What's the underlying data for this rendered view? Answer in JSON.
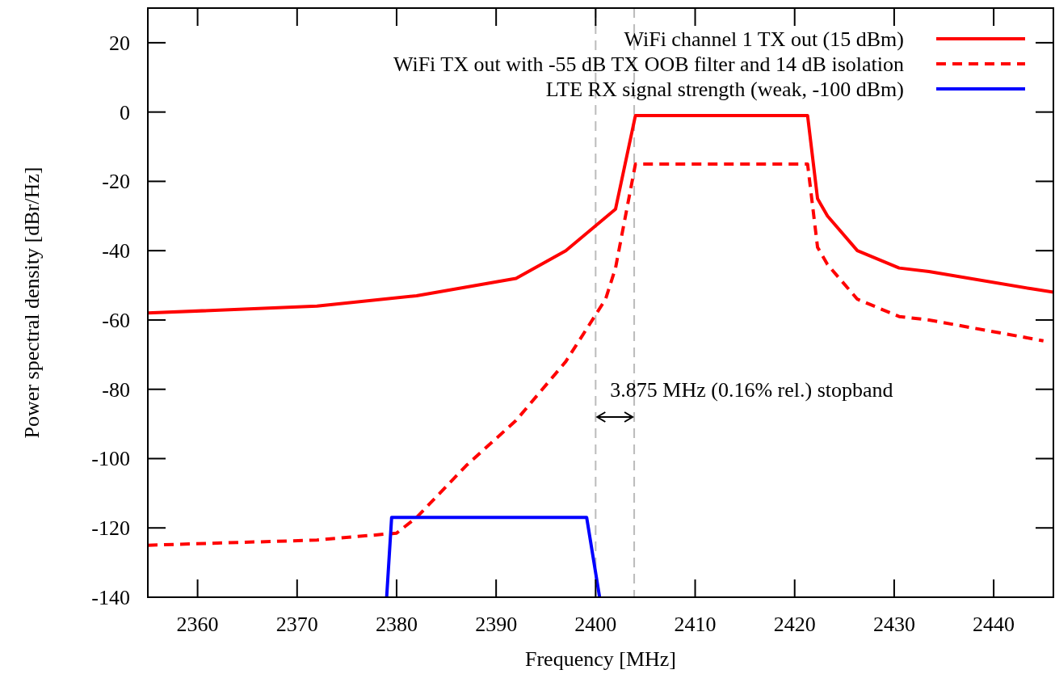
{
  "chart_data": {
    "type": "line",
    "xlabel": "Frequency [MHz]",
    "ylabel": "Power spectral density [dBr/Hz]",
    "xlim": [
      2355,
      2446
    ],
    "xticks": [
      2360,
      2370,
      2380,
      2390,
      2400,
      2410,
      2420,
      2430,
      2440
    ],
    "ylim": [
      -140,
      30
    ],
    "yticks": [
      -140,
      -120,
      -100,
      -80,
      -60,
      -40,
      -20,
      0,
      20
    ],
    "legend": "top right",
    "grid": false,
    "series": [
      {
        "name": "WiFi channel 1 TX out (15 dBm)",
        "color": "#ff0000",
        "line_style": "solid",
        "x": [
          2355,
          2372,
          2382,
          2392,
          2397,
          2402,
          2404,
          2421.3,
          2422.3,
          2423.3,
          2426.3,
          2430.5,
          2433.5,
          2443.8,
          2446
        ],
        "values": [
          -58,
          -56,
          -53,
          -48,
          -40,
          -28,
          -1,
          -1,
          -25,
          -30,
          -40,
          -45,
          -46,
          -51,
          -52
        ]
      },
      {
        "name": "WiFi TX out with -55 dB TX OOB filter and 14 dB isolation",
        "color": "#ff0000",
        "line_style": "dashed",
        "x": [
          2355,
          2372,
          2380,
          2382,
          2384,
          2387,
          2392,
          2397,
          2401,
          2402,
          2404,
          2421.3,
          2422.3,
          2423.3,
          2426.3,
          2430.5,
          2433.5,
          2445
        ],
        "values": [
          -125,
          -123.5,
          -121.5,
          -117,
          -111,
          -102,
          -89,
          -72,
          -54,
          -45,
          -15,
          -15,
          -39,
          -44,
          -54,
          -59,
          -60,
          -66
        ]
      },
      {
        "name": "LTE RX signal strength (weak, -100 dBm)",
        "color": "#0000ff",
        "line_style": "solid",
        "x": [
          2379,
          2379.5,
          2399.1,
          2400.4
        ],
        "values": [
          -140,
          -117,
          -117,
          -140
        ]
      }
    ],
    "ref_lines": [
      {
        "axis": "x",
        "value": 2400,
        "color": "#bbbbbb",
        "line_style": "dashed"
      },
      {
        "axis": "x",
        "value": 2403.875,
        "color": "#bbbbbb",
        "line_style": "dashed"
      }
    ],
    "annotations": [
      "3.875 MHz (0.16% rel.) stopband"
    ]
  }
}
